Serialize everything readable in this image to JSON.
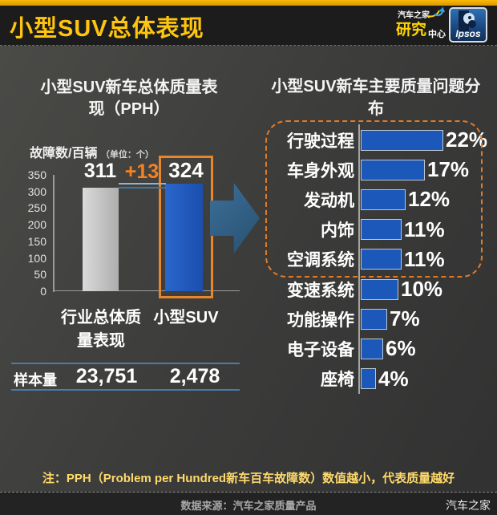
{
  "header": {
    "title": "小型SUV总体表现",
    "autohome_logo": {
      "top": "汽车之家",
      "big": "研究",
      "small": "中心"
    },
    "ipsos_logo": "Ipsos"
  },
  "left_panel": {
    "title_line1": "小型SUV新车总体质量表",
    "title_line2": "现（PPH）",
    "unit_main": "故障数/百辆",
    "unit_paren": "（单位：个）",
    "cat1_line1": "行业总体质",
    "cat1_line2": "量表现",
    "cat2": "小型SUV",
    "sample_label": "样本量"
  },
  "right_panel": {
    "title_line1": "小型SUV新车主要质量问题分",
    "title_line2": "布"
  },
  "chart_data": [
    {
      "type": "bar",
      "title": "小型SUV新车总体质量表现（PPH）",
      "ylabel": "故障数/百辆（单位：个）",
      "categories": [
        "行业总体质量表现",
        "小型SUV"
      ],
      "values": [
        311,
        324
      ],
      "diff": "+13",
      "ylim": [
        0,
        350
      ],
      "yticks": [
        350,
        300,
        250,
        200,
        150,
        100,
        50,
        0
      ],
      "sample_sizes": [
        "23,751",
        "2,478"
      ],
      "bar_colors": [
        "#b5b5b5",
        "#1c58ba"
      ],
      "highlight_box_color": "#e8862c"
    },
    {
      "type": "bar",
      "orientation": "horizontal",
      "title": "小型SUV新车主要质量问题分布",
      "categories": [
        "行驶过程",
        "车身外观",
        "发动机",
        "内饰",
        "空调系统",
        "变速系统",
        "功能操作",
        "电子设备",
        "座椅"
      ],
      "values": [
        22,
        17,
        12,
        11,
        11,
        10,
        7,
        6,
        4
      ],
      "unit": "%",
      "bar_color": "#1c58ba",
      "highlighted_top_n": 5,
      "highlight_style": "orange-dashed-outline"
    }
  ],
  "note": "注：PPH（Problem per Hundred新车百车故障数）数值越小，代表质量越好",
  "footer": {
    "source": "数据来源：汽车之家质量产品",
    "brand": "汽车之家"
  },
  "colors": {
    "title_yellow": "#ffc40e",
    "top_strip": "#f2a900",
    "bar_blue": "#1c58ba",
    "bar_gray": "#b5b5b5",
    "accent_orange": "#e8862c",
    "diff_orange": "#f58220",
    "rule_blue": "#4a7da5",
    "note_yellow": "#ffda6b",
    "background": "#3c3c3b"
  }
}
